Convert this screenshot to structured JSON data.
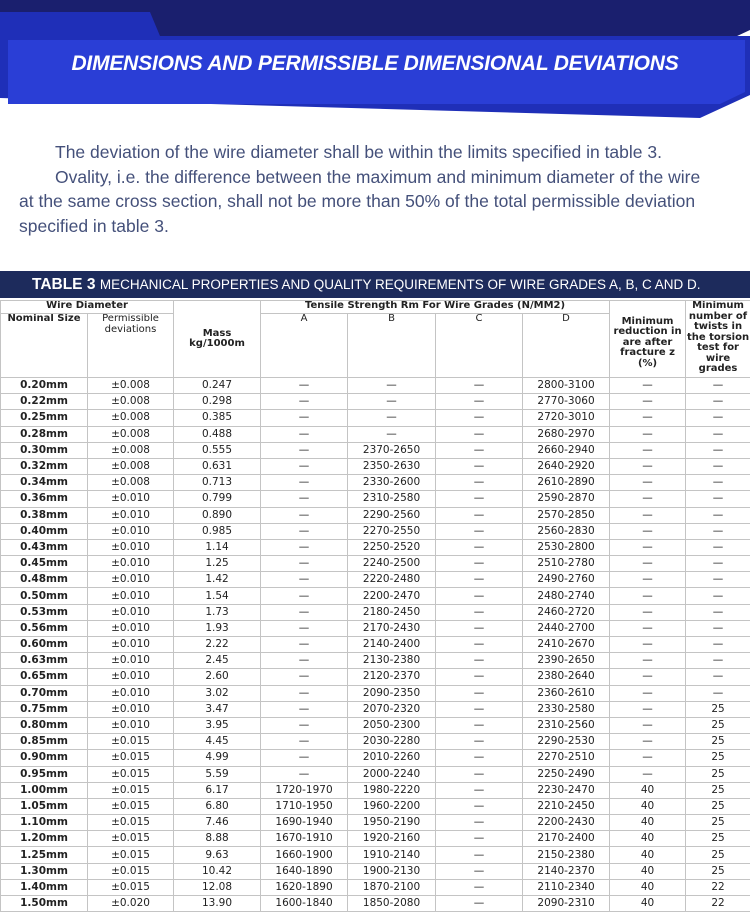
{
  "header": {
    "title": "DIMENSIONS AND PERMISSIBLE DIMENSIONAL DEVIATIONS"
  },
  "intro": {
    "paragraph_1": "The deviation of the wire diameter shall be within the limits specified in table 3.",
    "paragraph_2": "Ovality, i.e. the difference between the maximum and minimum diameter of the wire at the same cross section, shall not be more than 50% of the total permissible deviation specified in table 3."
  },
  "table": {
    "caption_label": "TABLE 3",
    "caption_text": "MECHANICAL PROPERTIES AND QUALITY REQUIREMENTS OF WIRE GRADES A, B, C AND D.",
    "headers": {
      "wire_diameter": "Wire Diameter",
      "nominal_size": "Nominal Size",
      "permissible_deviations": "Permissible deviations",
      "mass": "Mass kg/1000m",
      "tensile_strength": "Tensile Strength Rm For Wire Grades (N/MM2)",
      "grades": [
        "A",
        "B",
        "C",
        "D"
      ],
      "reduction": "Minimum reduction in are after fracture z (%)",
      "twists": "Minimum number of twists in the torsion test for wire grades"
    },
    "rows": [
      [
        "0.20mm",
        "±0.008",
        "0.247",
        "—",
        "—",
        "—",
        "2800-3100",
        "—",
        "—"
      ],
      [
        "0.22mm",
        "±0.008",
        "0.298",
        "—",
        "—",
        "—",
        "2770-3060",
        "—",
        "—"
      ],
      [
        "0.25mm",
        "±0.008",
        "0.385",
        "—",
        "—",
        "—",
        "2720-3010",
        "—",
        "—"
      ],
      [
        "0.28mm",
        "±0.008",
        "0.488",
        "—",
        "—",
        "—",
        "2680-2970",
        "—",
        "—"
      ],
      [
        "0.30mm",
        "±0.008",
        "0.555",
        "—",
        "2370-2650",
        "—",
        "2660-2940",
        "—",
        "—"
      ],
      [
        "0.32mm",
        "±0.008",
        "0.631",
        "—",
        "2350-2630",
        "—",
        "2640-2920",
        "—",
        "—"
      ],
      [
        "0.34mm",
        "±0.008",
        "0.713",
        "—",
        "2330-2600",
        "—",
        "2610-2890",
        "—",
        "—"
      ],
      [
        "0.36mm",
        "±0.010",
        "0.799",
        "—",
        "2310-2580",
        "—",
        "2590-2870",
        "—",
        "—"
      ],
      [
        "0.38mm",
        "±0.010",
        "0.890",
        "—",
        "2290-2560",
        "—",
        "2570-2850",
        "—",
        "—"
      ],
      [
        "0.40mm",
        "±0.010",
        "0.985",
        "—",
        "2270-2550",
        "—",
        "2560-2830",
        "—",
        "—"
      ],
      [
        "0.43mm",
        "±0.010",
        "1.14",
        "—",
        "2250-2520",
        "—",
        "2530-2800",
        "—",
        "—"
      ],
      [
        "0.45mm",
        "±0.010",
        "1.25",
        "—",
        "2240-2500",
        "—",
        "2510-2780",
        "—",
        "—"
      ],
      [
        "0.48mm",
        "±0.010",
        "1.42",
        "—",
        "2220-2480",
        "—",
        "2490-2760",
        "—",
        "—"
      ],
      [
        "0.50mm",
        "±0.010",
        "1.54",
        "—",
        "2200-2470",
        "—",
        "2480-2740",
        "—",
        "—"
      ],
      [
        "0.53mm",
        "±0.010",
        "1.73",
        "—",
        "2180-2450",
        "—",
        "2460-2720",
        "—",
        "—"
      ],
      [
        "0.56mm",
        "±0.010",
        "1.93",
        "—",
        "2170-2430",
        "—",
        "2440-2700",
        "—",
        "—"
      ],
      [
        "0.60mm",
        "±0.010",
        "2.22",
        "—",
        "2140-2400",
        "—",
        "2410-2670",
        "—",
        "—"
      ],
      [
        "0.63mm",
        "±0.010",
        "2.45",
        "—",
        "2130-2380",
        "—",
        "2390-2650",
        "—",
        "—"
      ],
      [
        "0.65mm",
        "±0.010",
        "2.60",
        "—",
        "2120-2370",
        "—",
        "2380-2640",
        "—",
        "—"
      ],
      [
        "0.70mm",
        "±0.010",
        "3.02",
        "—",
        "2090-2350",
        "—",
        "2360-2610",
        "—",
        "—"
      ],
      [
        "0.75mm",
        "±0.010",
        "3.47",
        "—",
        "2070-2320",
        "—",
        "2330-2580",
        "—",
        "25"
      ],
      [
        "0.80mm",
        "±0.010",
        "3.95",
        "—",
        "2050-2300",
        "—",
        "2310-2560",
        "—",
        "25"
      ],
      [
        "0.85mm",
        "±0.015",
        "4.45",
        "—",
        "2030-2280",
        "—",
        "2290-2530",
        "—",
        "25"
      ],
      [
        "0.90mm",
        "±0.015",
        "4.99",
        "—",
        "2010-2260",
        "—",
        "2270-2510",
        "—",
        "25"
      ],
      [
        "0.95mm",
        "±0.015",
        "5.59",
        "—",
        "2000-2240",
        "—",
        "2250-2490",
        "—",
        "25"
      ],
      [
        "1.00mm",
        "±0.015",
        "6.17",
        "1720-1970",
        "1980-2220",
        "—",
        "2230-2470",
        "40",
        "25"
      ],
      [
        "1.05mm",
        "±0.015",
        "6.80",
        "1710-1950",
        "1960-2200",
        "—",
        "2210-2450",
        "40",
        "25"
      ],
      [
        "1.10mm",
        "±0.015",
        "7.46",
        "1690-1940",
        "1950-2190",
        "—",
        "2200-2430",
        "40",
        "25"
      ],
      [
        "1.20mm",
        "±0.015",
        "8.88",
        "1670-1910",
        "1920-2160",
        "—",
        "2170-2400",
        "40",
        "25"
      ],
      [
        "1.25mm",
        "±0.015",
        "9.63",
        "1660-1900",
        "1910-2140",
        "—",
        "2150-2380",
        "40",
        "25"
      ],
      [
        "1.30mm",
        "±0.015",
        "10.42",
        "1640-1890",
        "1900-2130",
        "—",
        "2140-2370",
        "40",
        "25"
      ],
      [
        "1.40mm",
        "±0.015",
        "12.08",
        "1620-1890",
        "1870-2100",
        "—",
        "2110-2340",
        "40",
        "22"
      ],
      [
        "1.50mm",
        "±0.020",
        "13.90",
        "1600-1840",
        "1850-2080",
        "—",
        "2090-2310",
        "40",
        "22"
      ]
    ]
  }
}
